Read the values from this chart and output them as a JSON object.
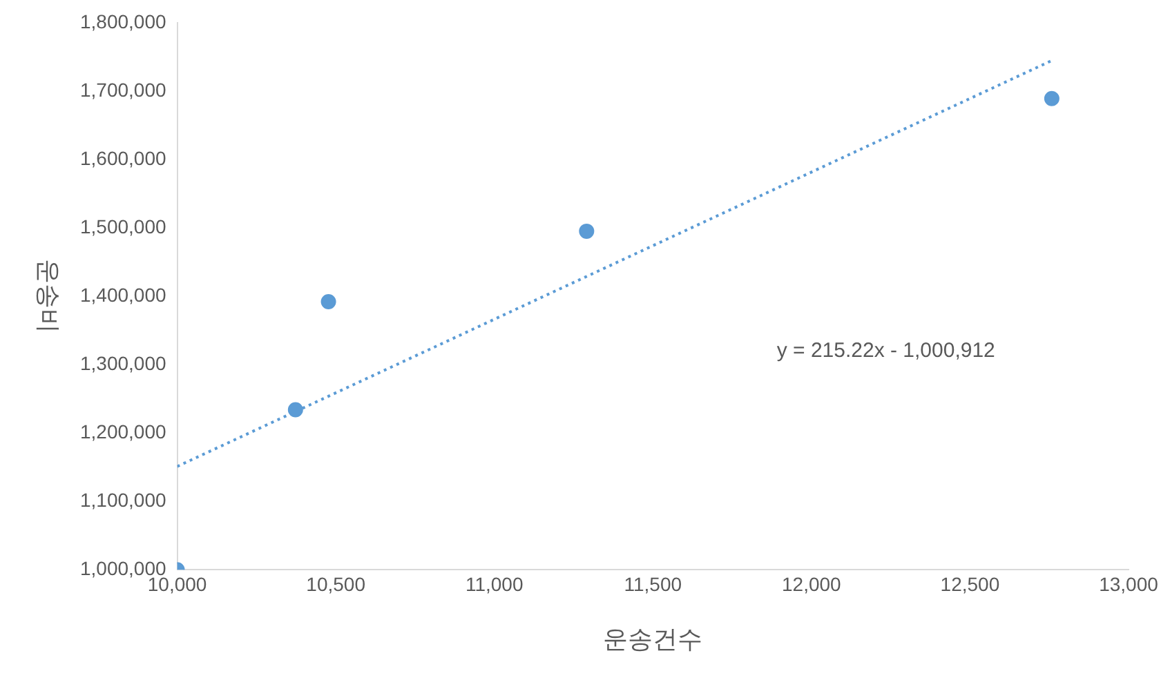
{
  "chart_data": {
    "type": "scatter",
    "xlabel": "운송건수",
    "ylabel": "운송비",
    "x": [
      10000,
      10373,
      10477,
      11291,
      12758
    ],
    "series": [
      {
        "type": "scatter",
        "color": "#5b9bd5",
        "marker": "circle",
        "values": [
          1000000,
          1234000,
          1392000,
          1495000,
          1689000
        ]
      },
      {
        "type": "line",
        "color": "#5b9bd5",
        "line_style": "dotted",
        "marker": "none",
        "x": [
          10000,
          12760
        ],
        "values": [
          1151000,
          1745000
        ]
      }
    ],
    "xlim": [
      10000,
      13000
    ],
    "xticks": [
      {
        "value": 10000,
        "label": "10,000"
      },
      {
        "value": 10500,
        "label": "10,500"
      },
      {
        "value": 11000,
        "label": "11,000"
      },
      {
        "value": 11500,
        "label": "11,500"
      },
      {
        "value": 12000,
        "label": "12,000"
      },
      {
        "value": 12500,
        "label": "12,500"
      },
      {
        "value": 13000,
        "label": "13,000"
      }
    ],
    "ylim": [
      1000000,
      1800000
    ],
    "yticks": [
      {
        "value": 1000000,
        "label": "1,000,000"
      },
      {
        "value": 1100000,
        "label": "1,100,000"
      },
      {
        "value": 1200000,
        "label": "1,200,000"
      },
      {
        "value": 1300000,
        "label": "1,300,000"
      },
      {
        "value": 1400000,
        "label": "1,400,000"
      },
      {
        "value": 1500000,
        "label": "1,500,000"
      },
      {
        "value": 1600000,
        "label": "1,600,000"
      },
      {
        "value": 1700000,
        "label": "1,700,000"
      },
      {
        "value": 1800000,
        "label": "1,800,000"
      }
    ],
    "annotations": [
      "y = 215.22x - 1,000,912"
    ],
    "grid": false,
    "legend": false
  }
}
